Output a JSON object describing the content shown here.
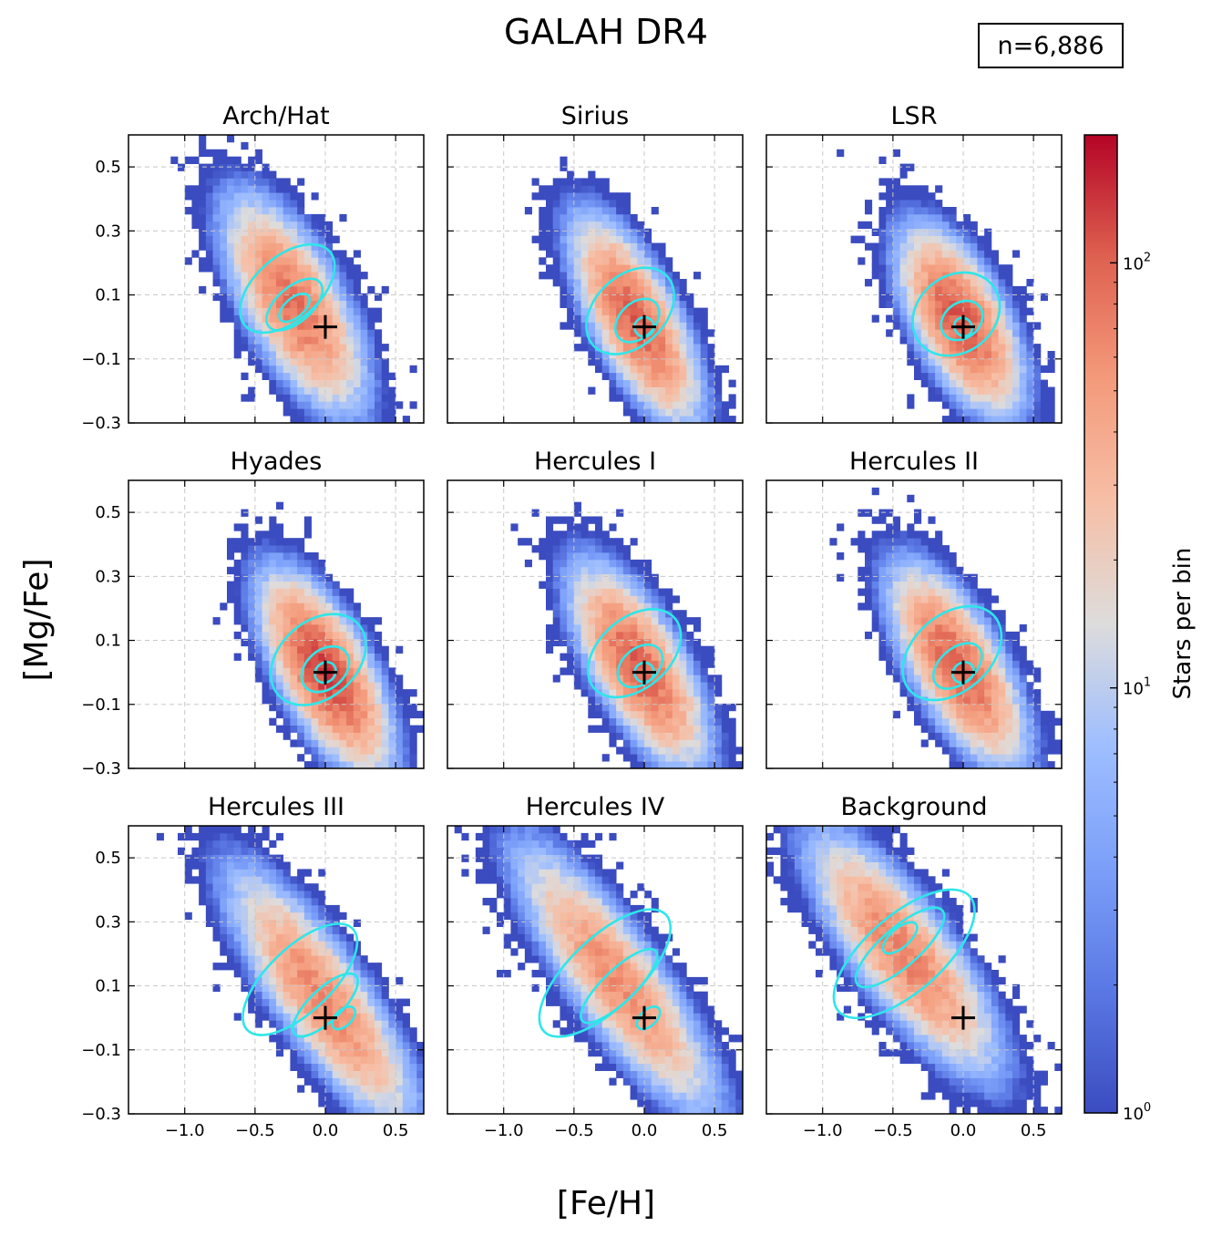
{
  "chart_data": {
    "type": "heatmap",
    "title": "GALAH DR4",
    "annotation": "n=6,886",
    "xlabel": "[Fe/H]",
    "ylabel": "[Mg/Fe]",
    "xlim": [
      -1.4,
      0.7
    ],
    "ylim": [
      -0.3,
      0.6
    ],
    "xticks": [
      -1.0,
      -0.5,
      0.0,
      0.5
    ],
    "xtick_labels": [
      "−1.0",
      "−0.5",
      "0.0",
      "0.5"
    ],
    "yticks": [
      -0.3,
      -0.1,
      0.1,
      0.3,
      0.5
    ],
    "ytick_labels": [
      "−0.3",
      "−0.1",
      "0.1",
      "0.3",
      "0.5"
    ],
    "grid": true,
    "reference_marker": {
      "x": 0.0,
      "y": 0.0,
      "symbol": "+"
    },
    "colorbar": {
      "label": "Stars per bin",
      "scale": "log",
      "range": [
        1,
        200
      ],
      "cmap": "coolwarm",
      "ticks": [
        {
          "value": 1,
          "base": "10",
          "exp": "0"
        },
        {
          "value": 10,
          "base": "10",
          "exp": "1"
        },
        {
          "value": 100,
          "base": "10",
          "exp": "2"
        }
      ]
    },
    "contour_color": "#2ee6ea",
    "panels": [
      {
        "name": "Arch/Hat",
        "center": [
          -0.22,
          0.07
        ],
        "spread": [
          0.22,
          0.11
        ],
        "slope": -0.45,
        "peak": 85,
        "contours": [
          {
            "rx": 0.4,
            "ry": 0.1,
            "cx": -0.27,
            "cy": 0.12
          },
          {
            "rx": 0.24,
            "ry": 0.055,
            "cx": -0.22,
            "cy": 0.07
          },
          {
            "rx": 0.13,
            "ry": 0.03,
            "cx": -0.22,
            "cy": 0.06
          }
        ]
      },
      {
        "name": "Sirius",
        "center": [
          -0.06,
          0.02
        ],
        "spread": [
          0.2,
          0.1
        ],
        "slope": -0.5,
        "peak": 100,
        "contours": [
          {
            "rx": 0.36,
            "ry": 0.11,
            "cx": -0.1,
            "cy": 0.05
          },
          {
            "rx": 0.18,
            "ry": 0.055,
            "cx": -0.05,
            "cy": 0.02
          },
          {
            "rx": 0.07,
            "ry": 0.03,
            "cx": 0.0,
            "cy": 0.0
          }
        ]
      },
      {
        "name": "LSR",
        "center": [
          -0.02,
          0.02
        ],
        "spread": [
          0.19,
          0.1
        ],
        "slope": -0.4,
        "peak": 110,
        "contours": [
          {
            "rx": 0.33,
            "ry": 0.12,
            "cx": -0.05,
            "cy": 0.04
          },
          {
            "rx": 0.16,
            "ry": 0.055,
            "cx": -0.01,
            "cy": 0.02
          },
          {
            "rx": 0.06,
            "ry": 0.03,
            "cx": 0.0,
            "cy": 0.0
          }
        ]
      },
      {
        "name": "Hyades",
        "center": [
          0.0,
          0.0
        ],
        "spread": [
          0.2,
          0.1
        ],
        "slope": -0.45,
        "peak": 130,
        "contours": [
          {
            "rx": 0.38,
            "ry": 0.12,
            "cx": -0.05,
            "cy": 0.04
          },
          {
            "rx": 0.19,
            "ry": 0.06,
            "cx": 0.0,
            "cy": 0.01
          },
          {
            "rx": 0.08,
            "ry": 0.03,
            "cx": 0.0,
            "cy": 0.0
          }
        ]
      },
      {
        "name": "Hercules I",
        "center": [
          -0.04,
          0.02
        ],
        "spread": [
          0.21,
          0.1
        ],
        "slope": -0.45,
        "peak": 100,
        "contours": [
          {
            "rx": 0.38,
            "ry": 0.11,
            "cx": -0.07,
            "cy": 0.06
          },
          {
            "rx": 0.18,
            "ry": 0.055,
            "cx": -0.03,
            "cy": 0.02
          },
          {
            "rx": 0.07,
            "ry": 0.03,
            "cx": 0.0,
            "cy": 0.0
          }
        ]
      },
      {
        "name": "Hercules II",
        "center": [
          -0.04,
          0.02
        ],
        "spread": [
          0.21,
          0.1
        ],
        "slope": -0.45,
        "peak": 100,
        "contours": [
          {
            "rx": 0.4,
            "ry": 0.12,
            "cx": -0.08,
            "cy": 0.06
          },
          {
            "rx": 0.2,
            "ry": 0.055,
            "cx": -0.04,
            "cy": 0.02
          },
          {
            "rx": 0.08,
            "ry": 0.03,
            "cx": 0.0,
            "cy": 0.0
          }
        ]
      },
      {
        "name": "Hercules III",
        "center": [
          -0.02,
          0.06
        ],
        "spread": [
          0.3,
          0.1
        ],
        "slope": -0.5,
        "peak": 65,
        "contours": [
          {
            "rx": 0.52,
            "ry": 0.1,
            "cx": -0.18,
            "cy": 0.12
          },
          {
            "rx": 0.3,
            "ry": 0.05,
            "cx": 0.0,
            "cy": 0.04
          },
          {
            "rx": 0.1,
            "ry": 0.025,
            "cx": 0.13,
            "cy": 0.0
          }
        ]
      },
      {
        "name": "Hercules IV",
        "center": [
          -0.2,
          0.12
        ],
        "spread": [
          0.32,
          0.1
        ],
        "slope": -0.5,
        "peak": 60,
        "contours": [
          {
            "rx": 0.6,
            "ry": 0.11,
            "cx": -0.28,
            "cy": 0.14
          },
          {
            "rx": 0.36,
            "ry": 0.05,
            "cx": -0.18,
            "cy": 0.1
          },
          {
            "rx": 0.1,
            "ry": 0.025,
            "cx": 0.03,
            "cy": 0.0
          }
        ]
      },
      {
        "name": "Background",
        "center": [
          -0.42,
          0.2
        ],
        "spread": [
          0.3,
          0.1
        ],
        "slope": -0.45,
        "peak": 70,
        "contours": [
          {
            "rx": 0.62,
            "ry": 0.12,
            "cx": -0.42,
            "cy": 0.2
          },
          {
            "rx": 0.4,
            "ry": 0.06,
            "cx": -0.45,
            "cy": 0.22
          },
          {
            "rx": 0.15,
            "ry": 0.03,
            "cx": -0.45,
            "cy": 0.25
          }
        ]
      }
    ]
  }
}
